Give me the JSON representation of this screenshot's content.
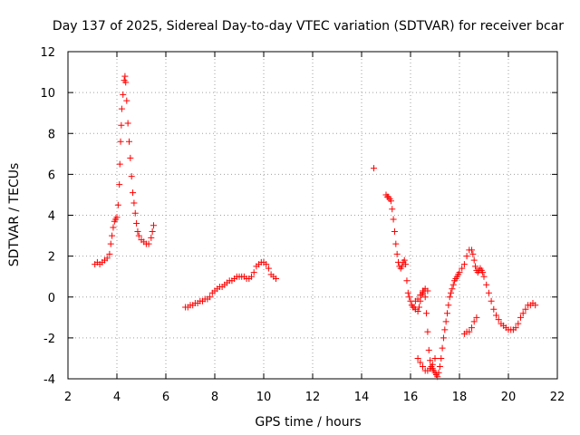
{
  "chart_data": {
    "type": "scatter",
    "title": "Day 137 of 2025, Sidereal Day-to-day VTEC variation (SDTVAR) for receiver bcar",
    "xlabel": "GPS time / hours",
    "ylabel": "SDTVAR / TECUs",
    "xlim": [
      2,
      22
    ],
    "ylim": [
      -4,
      12
    ],
    "xticks": [
      "2",
      "4",
      "6",
      "8",
      "10",
      "12",
      "14",
      "16",
      "18",
      "20",
      "22"
    ],
    "yticks": [
      "-4",
      "-2",
      "0",
      "2",
      "4",
      "6",
      "8",
      "10",
      "12"
    ],
    "grid": true,
    "marker": "+",
    "color": "#ff0000",
    "series": [
      {
        "name": "SDTVAR",
        "points": [
          [
            3.1,
            1.6
          ],
          [
            3.2,
            1.7
          ],
          [
            3.3,
            1.6
          ],
          [
            3.4,
            1.7
          ],
          [
            3.5,
            1.8
          ],
          [
            3.6,
            1.9
          ],
          [
            3.7,
            2.1
          ],
          [
            3.75,
            2.6
          ],
          [
            3.8,
            3.0
          ],
          [
            3.85,
            3.4
          ],
          [
            3.9,
            3.7
          ],
          [
            3.95,
            3.8
          ],
          [
            4.0,
            3.9
          ],
          [
            4.05,
            4.5
          ],
          [
            4.1,
            5.5
          ],
          [
            4.12,
            6.5
          ],
          [
            4.15,
            7.6
          ],
          [
            4.18,
            8.4
          ],
          [
            4.2,
            9.2
          ],
          [
            4.25,
            9.9
          ],
          [
            4.3,
            10.6
          ],
          [
            4.33,
            10.8
          ],
          [
            4.36,
            10.5
          ],
          [
            4.4,
            9.6
          ],
          [
            4.45,
            8.5
          ],
          [
            4.5,
            7.6
          ],
          [
            4.55,
            6.8
          ],
          [
            4.6,
            5.9
          ],
          [
            4.65,
            5.1
          ],
          [
            4.7,
            4.6
          ],
          [
            4.75,
            4.1
          ],
          [
            4.8,
            3.6
          ],
          [
            4.85,
            3.2
          ],
          [
            4.9,
            3.0
          ],
          [
            5.0,
            2.8
          ],
          [
            5.1,
            2.7
          ],
          [
            5.2,
            2.6
          ],
          [
            5.3,
            2.6
          ],
          [
            5.4,
            2.9
          ],
          [
            5.45,
            3.2
          ],
          [
            5.5,
            3.5
          ],
          [
            6.8,
            -0.5
          ],
          [
            6.9,
            -0.5
          ],
          [
            7.0,
            -0.4
          ],
          [
            7.1,
            -0.4
          ],
          [
            7.2,
            -0.3
          ],
          [
            7.3,
            -0.3
          ],
          [
            7.4,
            -0.2
          ],
          [
            7.5,
            -0.2
          ],
          [
            7.6,
            -0.1
          ],
          [
            7.7,
            -0.1
          ],
          [
            7.8,
            0.0
          ],
          [
            7.9,
            0.2
          ],
          [
            8.0,
            0.3
          ],
          [
            8.1,
            0.4
          ],
          [
            8.2,
            0.5
          ],
          [
            8.3,
            0.5
          ],
          [
            8.4,
            0.6
          ],
          [
            8.5,
            0.7
          ],
          [
            8.6,
            0.8
          ],
          [
            8.7,
            0.8
          ],
          [
            8.8,
            0.9
          ],
          [
            8.9,
            1.0
          ],
          [
            9.0,
            1.0
          ],
          [
            9.1,
            1.0
          ],
          [
            9.2,
            1.0
          ],
          [
            9.3,
            0.9
          ],
          [
            9.4,
            0.9
          ],
          [
            9.5,
            1.0
          ],
          [
            9.6,
            1.2
          ],
          [
            9.7,
            1.5
          ],
          [
            9.8,
            1.6
          ],
          [
            9.9,
            1.7
          ],
          [
            10.0,
            1.7
          ],
          [
            10.1,
            1.6
          ],
          [
            10.2,
            1.4
          ],
          [
            10.3,
            1.1
          ],
          [
            10.4,
            1.0
          ],
          [
            10.5,
            0.9
          ],
          [
            14.5,
            6.3
          ],
          [
            15.0,
            5.0
          ],
          [
            15.05,
            4.9
          ],
          [
            15.1,
            4.9
          ],
          [
            15.15,
            4.8
          ],
          [
            15.2,
            4.7
          ],
          [
            15.25,
            4.3
          ],
          [
            15.3,
            3.8
          ],
          [
            15.35,
            3.2
          ],
          [
            15.4,
            2.6
          ],
          [
            15.45,
            2.1
          ],
          [
            15.5,
            1.7
          ],
          [
            15.55,
            1.5
          ],
          [
            15.6,
            1.4
          ],
          [
            15.65,
            1.5
          ],
          [
            15.7,
            1.7
          ],
          [
            15.75,
            1.8
          ],
          [
            15.8,
            1.6
          ],
          [
            15.85,
            0.8
          ],
          [
            15.9,
            0.2
          ],
          [
            15.95,
            0.0
          ],
          [
            16.0,
            -0.2
          ],
          [
            16.05,
            -0.4
          ],
          [
            16.1,
            -0.5
          ],
          [
            16.15,
            -0.5
          ],
          [
            16.2,
            -0.6
          ],
          [
            16.3,
            -0.7
          ],
          [
            16.35,
            -0.5
          ],
          [
            16.4,
            -0.2
          ],
          [
            16.45,
            0.1
          ],
          [
            16.5,
            0.2
          ],
          [
            16.55,
            0.3
          ],
          [
            16.6,
            0.0
          ],
          [
            16.65,
            -0.8
          ],
          [
            16.7,
            -1.7
          ],
          [
            16.75,
            -2.6
          ],
          [
            16.8,
            -3.1
          ],
          [
            16.85,
            -3.4
          ],
          [
            16.9,
            -3.5
          ],
          [
            16.95,
            -3.6
          ],
          [
            17.0,
            -3.7
          ],
          [
            17.05,
            -3.8
          ],
          [
            17.1,
            -3.9
          ],
          [
            17.15,
            -3.7
          ],
          [
            17.2,
            -3.4
          ],
          [
            17.25,
            -3.0
          ],
          [
            17.3,
            -2.5
          ],
          [
            17.35,
            -2.0
          ],
          [
            17.4,
            -1.6
          ],
          [
            17.45,
            -1.2
          ],
          [
            17.5,
            -0.8
          ],
          [
            17.55,
            -0.4
          ],
          [
            17.6,
            0.0
          ],
          [
            17.65,
            0.2
          ],
          [
            17.7,
            0.4
          ],
          [
            17.75,
            0.6
          ],
          [
            17.8,
            0.8
          ],
          [
            17.85,
            0.9
          ],
          [
            17.9,
            1.0
          ],
          [
            17.95,
            1.1
          ],
          [
            18.0,
            1.2
          ],
          [
            18.1,
            1.4
          ],
          [
            18.2,
            1.6
          ],
          [
            18.3,
            2.0
          ],
          [
            18.4,
            2.3
          ],
          [
            18.5,
            2.3
          ],
          [
            18.55,
            2.1
          ],
          [
            18.6,
            1.8
          ],
          [
            18.65,
            1.5
          ],
          [
            18.7,
            1.3
          ],
          [
            18.75,
            1.2
          ],
          [
            18.8,
            1.3
          ],
          [
            18.85,
            1.4
          ],
          [
            18.9,
            1.3
          ],
          [
            18.95,
            1.2
          ],
          [
            19.0,
            1.0
          ],
          [
            19.1,
            0.6
          ],
          [
            19.2,
            0.2
          ],
          [
            19.3,
            -0.2
          ],
          [
            19.4,
            -0.6
          ],
          [
            19.5,
            -0.9
          ],
          [
            19.6,
            -1.1
          ],
          [
            19.7,
            -1.3
          ],
          [
            19.8,
            -1.4
          ],
          [
            19.9,
            -1.5
          ],
          [
            20.0,
            -1.6
          ],
          [
            20.1,
            -1.6
          ],
          [
            20.2,
            -1.6
          ],
          [
            20.3,
            -1.5
          ],
          [
            20.4,
            -1.3
          ],
          [
            20.5,
            -1.0
          ],
          [
            20.6,
            -0.8
          ],
          [
            20.7,
            -0.6
          ],
          [
            20.8,
            -0.4
          ],
          [
            20.9,
            -0.4
          ],
          [
            21.0,
            -0.3
          ],
          [
            21.1,
            -0.4
          ],
          [
            16.3,
            -3.0
          ],
          [
            16.4,
            -3.2
          ],
          [
            16.5,
            -3.4
          ],
          [
            16.6,
            -3.6
          ],
          [
            16.7,
            -3.6
          ],
          [
            16.8,
            -3.5
          ],
          [
            16.9,
            -3.3
          ],
          [
            17.0,
            -3.0
          ],
          [
            18.2,
            -1.8
          ],
          [
            18.3,
            -1.7
          ],
          [
            18.4,
            -1.7
          ],
          [
            18.5,
            -1.5
          ],
          [
            18.6,
            -1.2
          ],
          [
            18.7,
            -1.0
          ],
          [
            16.2,
            -0.2
          ],
          [
            16.3,
            -0.1
          ],
          [
            16.4,
            0.1
          ],
          [
            16.5,
            0.3
          ],
          [
            16.6,
            0.4
          ],
          [
            16.7,
            0.3
          ]
        ]
      }
    ]
  }
}
